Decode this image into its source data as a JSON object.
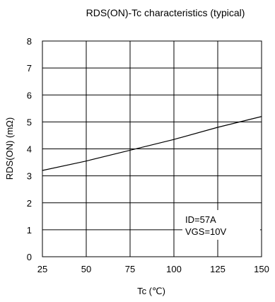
{
  "chart_data": {
    "type": "line",
    "title": "RDS(ON)-Tc characteristics (typical)",
    "xlabel": "Tc (℃)",
    "ylabel": "RDS(ON) (mΩ)",
    "xlim": [
      25,
      150
    ],
    "ylim": [
      0,
      8
    ],
    "x_ticks": [
      25,
      50,
      75,
      100,
      125,
      150
    ],
    "y_ticks": [
      0,
      1,
      2,
      3,
      4,
      5,
      6,
      7,
      8
    ],
    "grid": true,
    "series": [
      {
        "x": [
          25,
          50,
          75,
          100,
          125,
          150
        ],
        "y": [
          3.2,
          3.55,
          3.95,
          4.35,
          4.8,
          5.2
        ]
      }
    ],
    "annotations": [
      "ID=57A",
      "VGS=10V"
    ]
  },
  "colors": {
    "line": "#000000",
    "grid": "#000000",
    "background": "#ffffff"
  }
}
